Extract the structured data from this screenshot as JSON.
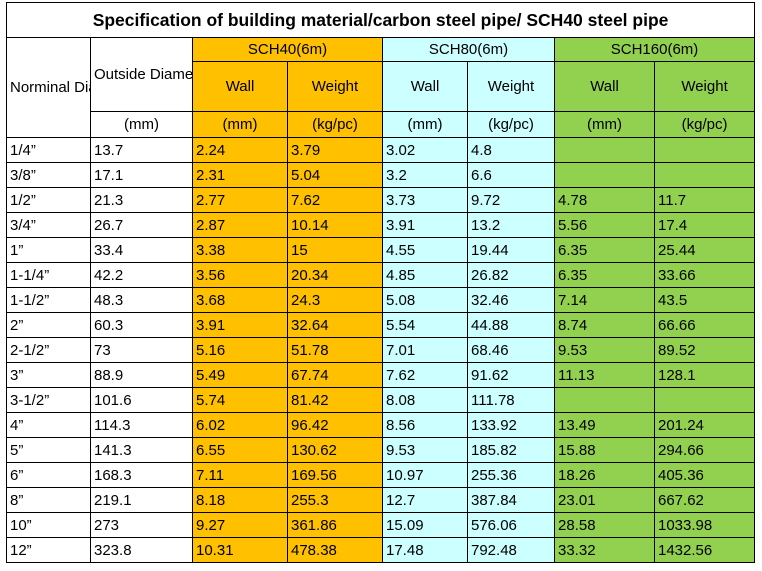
{
  "title": "Specification of building material/carbon steel pipe/ SCH40 steel pipe",
  "header": {
    "nominal": "Norminal Diameter",
    "outside": "Outside Diameter",
    "groups": [
      "SCH40(6m)",
      "SCH80(6m)",
      "SCH160(6m)"
    ],
    "subheaders": [
      "Wall",
      "Weight",
      "Wall",
      "Weight",
      "Wall",
      "Weight"
    ],
    "units": [
      "(mm)",
      "(mm)",
      "(kg/pc)",
      "(mm)",
      "(kg/pc)",
      "(mm)",
      "(kg/pc)"
    ]
  },
  "rows": [
    [
      "1/4”",
      "13.7",
      "2.24",
      "3.79",
      "3.02",
      "4.8",
      null,
      null
    ],
    [
      "3/8”",
      "17.1",
      "2.31",
      "5.04",
      "3.2",
      "6.6",
      null,
      null
    ],
    [
      "1/2”",
      "21.3",
      "2.77",
      "7.62",
      "3.73",
      "9.72",
      "4.78",
      "11.7"
    ],
    [
      "3/4”",
      "26.7",
      "2.87",
      "10.14",
      "3.91",
      "13.2",
      "5.56",
      "17.4"
    ],
    [
      "1”",
      "33.4",
      "3.38",
      "15",
      "4.55",
      "19.44",
      "6.35",
      "25.44"
    ],
    [
      "1-1/4”",
      "42.2",
      "3.56",
      "20.34",
      "4.85",
      "26.82",
      "6.35",
      "33.66"
    ],
    [
      "1-1/2”",
      "48.3",
      "3.68",
      "24.3",
      "5.08",
      "32.46",
      "7.14",
      "43.5"
    ],
    [
      "2”",
      "60.3",
      "3.91",
      "32.64",
      "5.54",
      "44.88",
      "8.74",
      "66.66"
    ],
    [
      "2-1/2”",
      "73",
      "5.16",
      "51.78",
      "7.01",
      "68.46",
      "9.53",
      "89.52"
    ],
    [
      "3”",
      "88.9",
      "5.49",
      "67.74",
      "7.62",
      "91.62",
      "11.13",
      "128.1"
    ],
    [
      "3-1/2”",
      "101.6",
      "5.74",
      "81.42",
      "8.08",
      "111.78",
      null,
      null
    ],
    [
      "4”",
      "114.3",
      "6.02",
      "96.42",
      "8.56",
      "133.92",
      "13.49",
      "201.24"
    ],
    [
      "5”",
      "141.3",
      "6.55",
      "130.62",
      "9.53",
      "185.82",
      "15.88",
      "294.66"
    ],
    [
      "6”",
      "168.3",
      "7.11",
      "169.56",
      "10.97",
      "255.36",
      "18.26",
      "405.36"
    ],
    [
      "8”",
      "219.1",
      "8.18",
      "255.3",
      "12.7",
      "387.84",
      "23.01",
      "667.62"
    ],
    [
      "10”",
      "273",
      "9.27",
      "361.86",
      "15.09",
      "576.06",
      "28.58",
      "1033.98"
    ],
    [
      "12”",
      "323.8",
      "10.31",
      "478.38",
      "17.48",
      "792.48",
      "33.32",
      "1432.56"
    ]
  ]
}
